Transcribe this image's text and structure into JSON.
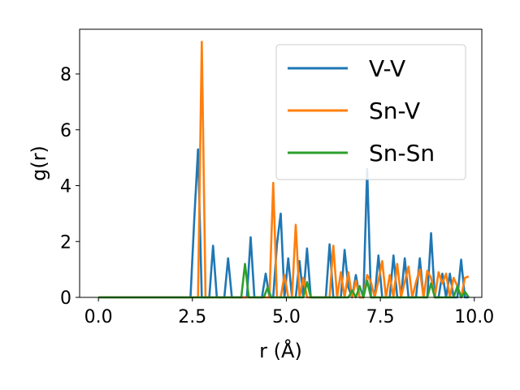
{
  "chart_data": {
    "type": "line",
    "xlabel": "r (Å)",
    "ylabel": "g(r)",
    "xlim": [
      -0.5,
      10.2
    ],
    "ylim": [
      0,
      9.6
    ],
    "x_ticks": [
      0.0,
      2.5,
      5.0,
      7.5,
      10.0
    ],
    "x_tick_labels": [
      "0.0",
      "2.5",
      "5.0",
      "7.5",
      "10.0"
    ],
    "y_ticks": [
      0,
      2,
      4,
      6,
      8
    ],
    "y_tick_labels": [
      "0",
      "2",
      "4",
      "6",
      "8"
    ],
    "grid": false,
    "legend_position": "top-right",
    "series": [
      {
        "name": "V-V",
        "color": "#1f77b4",
        "x": [
          0,
          2.4,
          2.45,
          2.55,
          2.65,
          2.75,
          2.85,
          2.95,
          3.05,
          3.15,
          3.25,
          3.35,
          3.45,
          3.55,
          3.65,
          3.75,
          3.85,
          3.95,
          4.05,
          4.15,
          4.25,
          4.35,
          4.45,
          4.55,
          4.65,
          4.75,
          4.85,
          4.95,
          5.05,
          5.15,
          5.25,
          5.35,
          5.45,
          5.55,
          5.65,
          5.75,
          5.85,
          5.95,
          6.05,
          6.15,
          6.25,
          6.35,
          6.45,
          6.55,
          6.65,
          6.75,
          6.85,
          6.95,
          7.05,
          7.15,
          7.25,
          7.35,
          7.45,
          7.55,
          7.65,
          7.75,
          7.85,
          7.95,
          8.05,
          8.15,
          8.25,
          8.35,
          8.45,
          8.55,
          8.65,
          8.75,
          8.85,
          8.95,
          9.05,
          9.15,
          9.25,
          9.35,
          9.45,
          9.55,
          9.65,
          9.75,
          9.85
        ],
        "y": [
          0,
          0,
          0,
          2.8,
          5.3,
          0,
          0,
          0,
          1.85,
          0,
          0,
          0,
          1.4,
          0,
          0,
          0,
          0,
          0,
          2.15,
          0,
          0,
          0,
          0.85,
          0,
          0,
          1.9,
          3.0,
          0,
          1.4,
          0,
          0,
          1.3,
          0,
          1.75,
          0,
          0,
          0,
          0,
          0,
          1.9,
          0,
          0,
          0,
          1.7,
          0.35,
          0,
          0.8,
          0,
          0,
          4.6,
          0,
          0,
          1.5,
          0,
          0,
          0,
          1.5,
          0,
          0,
          1.4,
          0,
          0,
          0,
          1.4,
          0,
          0,
          2.3,
          0,
          0,
          0.85,
          0,
          0.85,
          0,
          0,
          1.35,
          0,
          0
        ]
      },
      {
        "name": "Sn-V",
        "color": "#ff7f0e",
        "x": [
          0,
          2.65,
          2.75,
          2.85,
          2.95,
          4.55,
          4.65,
          4.75,
          4.85,
          4.95,
          5.05,
          5.15,
          5.25,
          5.35,
          5.45,
          5.55,
          5.65,
          5.75,
          6.15,
          6.25,
          6.35,
          6.45,
          6.55,
          6.65,
          6.75,
          6.85,
          6.95,
          7.05,
          7.15,
          7.25,
          7.35,
          7.45,
          7.55,
          7.65,
          7.75,
          7.85,
          7.95,
          8.05,
          8.15,
          8.25,
          8.35,
          8.45,
          8.55,
          8.65,
          8.75,
          8.85,
          8.95,
          9.05,
          9.15,
          9.25,
          9.35,
          9.45,
          9.55,
          9.65,
          9.75,
          9.85
        ],
        "y": [
          0,
          0,
          9.15,
          0,
          0,
          0,
          4.1,
          0,
          0,
          0.8,
          0,
          0,
          2.6,
          0,
          0.7,
          0,
          0,
          0,
          0,
          1.85,
          0,
          0.9,
          0,
          0.9,
          0,
          0.6,
          0,
          0,
          0.8,
          0.55,
          0,
          0.6,
          1.3,
          0,
          0.8,
          0,
          1.2,
          0,
          0.55,
          1.1,
          0,
          0.55,
          1.0,
          0,
          0.95,
          0.7,
          0,
          0.9,
          0.5,
          0.85,
          0,
          0.7,
          0.4,
          0,
          0.7,
          0.75
        ]
      },
      {
        "name": "Sn-Sn",
        "color": "#2ca02c",
        "x": [
          0,
          3.7,
          3.8,
          3.9,
          4.0,
          4.4,
          4.5,
          4.6,
          5.45,
          5.55,
          5.65,
          5.75,
          6.65,
          6.75,
          6.85,
          6.95,
          7.05,
          7.15,
          7.25,
          7.35,
          8.65,
          8.75,
          8.85,
          8.95,
          9.05,
          9.45,
          9.55,
          9.65,
          9.75,
          9.85
        ],
        "y": [
          0,
          0,
          0,
          1.2,
          0,
          0,
          0.35,
          0,
          0,
          0.55,
          0,
          0,
          0,
          0.25,
          0,
          0.4,
          0,
          0.6,
          0,
          0,
          0,
          0,
          0.5,
          0,
          0,
          0,
          0.4,
          0,
          0.2,
          0
        ]
      }
    ]
  }
}
